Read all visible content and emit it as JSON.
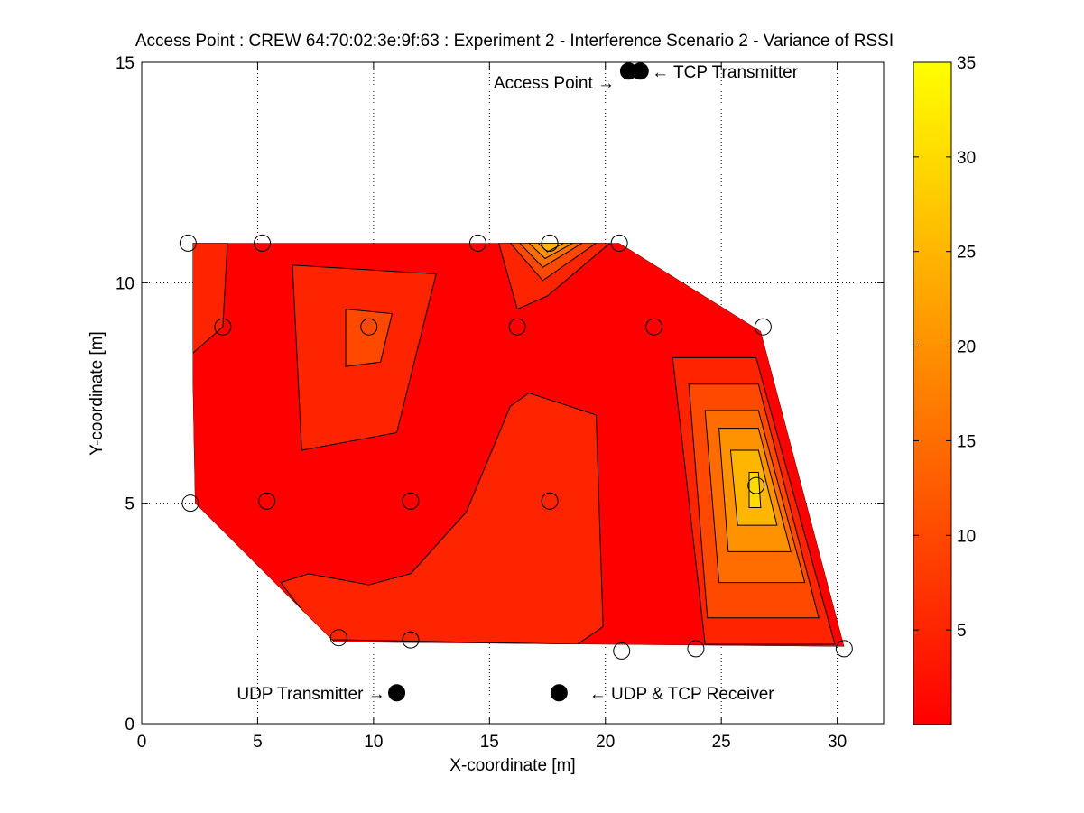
{
  "chart_data": {
    "type": "contour",
    "title": "Access Point : CREW 64:70:02:3e:9f:63 : Experiment 2 - Interference Scenario 2 - Variance of RSSI",
    "xlabel": "X-coordinate [m]",
    "ylabel": "Y-coordinate [m]",
    "xlim": [
      0,
      32
    ],
    "ylim": [
      0,
      15
    ],
    "xticks": [
      0,
      5,
      10,
      15,
      20,
      25,
      30
    ],
    "yticks": [
      0,
      5,
      10,
      15
    ],
    "grid": true,
    "colormap": "autumn",
    "colorbar": {
      "range": [
        0,
        35
      ],
      "ticks": [
        5,
        10,
        15,
        20,
        25,
        30,
        35
      ]
    },
    "measurement_points": [
      {
        "x": 2.0,
        "y": 10.9
      },
      {
        "x": 5.2,
        "y": 10.9
      },
      {
        "x": 14.5,
        "y": 10.9
      },
      {
        "x": 17.6,
        "y": 10.9
      },
      {
        "x": 20.6,
        "y": 10.9
      },
      {
        "x": 3.5,
        "y": 9.0
      },
      {
        "x": 9.8,
        "y": 9.0
      },
      {
        "x": 16.2,
        "y": 9.0
      },
      {
        "x": 22.1,
        "y": 9.0
      },
      {
        "x": 26.8,
        "y": 9.0
      },
      {
        "x": 2.1,
        "y": 5.0
      },
      {
        "x": 5.4,
        "y": 5.05
      },
      {
        "x": 11.6,
        "y": 5.05
      },
      {
        "x": 17.6,
        "y": 5.05
      },
      {
        "x": 26.5,
        "y": 5.4
      },
      {
        "x": 8.5,
        "y": 1.95
      },
      {
        "x": 11.6,
        "y": 1.9
      },
      {
        "x": 20.7,
        "y": 1.65
      },
      {
        "x": 23.9,
        "y": 1.7
      },
      {
        "x": 30.3,
        "y": 1.7
      }
    ],
    "contours": [
      {
        "level": 5,
        "points": [
          [
            2.2,
            10.9
          ],
          [
            3.7,
            10.9
          ],
          [
            3.5,
            9.0
          ],
          [
            2.2,
            8.4
          ]
        ]
      },
      {
        "level": 5,
        "points": [
          [
            6.5,
            10.4
          ],
          [
            12.7,
            10.2
          ],
          [
            11.0,
            6.6
          ],
          [
            6.9,
            6.2
          ]
        ]
      },
      {
        "level": 10,
        "points": [
          [
            8.8,
            9.4
          ],
          [
            10.8,
            9.3
          ],
          [
            10.3,
            8.2
          ],
          [
            8.8,
            8.1
          ]
        ]
      },
      {
        "level": 5,
        "points": [
          [
            15.4,
            10.9
          ],
          [
            20.2,
            10.9
          ],
          [
            17.5,
            9.7
          ],
          [
            16.2,
            9.4
          ]
        ]
      },
      {
        "level": 10,
        "points": [
          [
            15.9,
            10.9
          ],
          [
            19.6,
            10.9
          ],
          [
            17.3,
            10.05
          ]
        ]
      },
      {
        "level": 15,
        "points": [
          [
            16.3,
            10.9
          ],
          [
            19.0,
            10.9
          ],
          [
            17.3,
            10.35
          ]
        ]
      },
      {
        "level": 20,
        "points": [
          [
            16.7,
            10.9
          ],
          [
            18.6,
            10.9
          ],
          [
            17.4,
            10.55
          ]
        ]
      },
      {
        "level": 25,
        "points": [
          [
            17.1,
            10.9
          ],
          [
            18.2,
            10.9
          ],
          [
            17.5,
            10.7
          ]
        ]
      },
      {
        "level": 5,
        "points": [
          [
            6.0,
            3.2
          ],
          [
            7.2,
            3.4
          ],
          [
            9.8,
            3.15
          ],
          [
            11.6,
            3.4
          ],
          [
            14.0,
            4.8
          ],
          [
            15.9,
            7.2
          ],
          [
            16.7,
            7.5
          ],
          [
            19.6,
            7.0
          ],
          [
            19.9,
            2.2
          ],
          [
            18.8,
            1.8
          ],
          [
            8.8,
            1.9
          ],
          [
            7.9,
            1.9
          ]
        ]
      },
      {
        "level": 5,
        "points": [
          [
            22.9,
            8.3
          ],
          [
            26.5,
            8.3
          ],
          [
            29.9,
            1.8
          ],
          [
            24.3,
            1.8
          ]
        ]
      },
      {
        "level": 10,
        "points": [
          [
            23.6,
            7.7
          ],
          [
            26.6,
            7.7
          ],
          [
            29.2,
            2.4
          ],
          [
            24.4,
            2.4
          ]
        ]
      },
      {
        "level": 15,
        "points": [
          [
            24.3,
            7.1
          ],
          [
            26.6,
            7.1
          ],
          [
            28.6,
            3.2
          ],
          [
            24.9,
            3.2
          ]
        ]
      },
      {
        "level": 20,
        "points": [
          [
            24.9,
            6.7
          ],
          [
            26.6,
            6.7
          ],
          [
            28.0,
            3.9
          ],
          [
            25.3,
            3.9
          ]
        ]
      },
      {
        "level": 25,
        "points": [
          [
            25.4,
            6.2
          ],
          [
            26.6,
            6.2
          ],
          [
            27.4,
            4.5
          ],
          [
            25.7,
            4.5
          ]
        ]
      },
      {
        "level": 30,
        "points": [
          [
            26.2,
            5.7
          ],
          [
            26.6,
            5.7
          ],
          [
            26.7,
            4.9
          ],
          [
            26.2,
            4.9
          ]
        ]
      }
    ],
    "domain_outline": [
      [
        2.2,
        10.9
      ],
      [
        20.6,
        10.9
      ],
      [
        26.7,
        8.9
      ],
      [
        30.3,
        1.75
      ],
      [
        8.3,
        1.85
      ],
      [
        2.3,
        5.0
      ],
      [
        2.2,
        7.8
      ]
    ],
    "device_markers": [
      {
        "x": 21.0,
        "y": 14.8
      },
      {
        "x": 21.5,
        "y": 14.8
      },
      {
        "x": 11.0,
        "y": 0.7
      },
      {
        "x": 18.0,
        "y": 0.7
      }
    ],
    "annotations": [
      {
        "text": "Access Point →",
        "x": 20.4,
        "y": 14.55,
        "align": "end"
      },
      {
        "text": "← TCP Transmitter",
        "x": 22.0,
        "y": 14.8,
        "align": "start"
      },
      {
        "text": "UDP Transmitter →",
        "x": 10.5,
        "y": 0.7,
        "align": "end"
      },
      {
        "text": "← UDP & TCP Receiver",
        "x": 19.3,
        "y": 0.7,
        "align": "start"
      }
    ]
  }
}
